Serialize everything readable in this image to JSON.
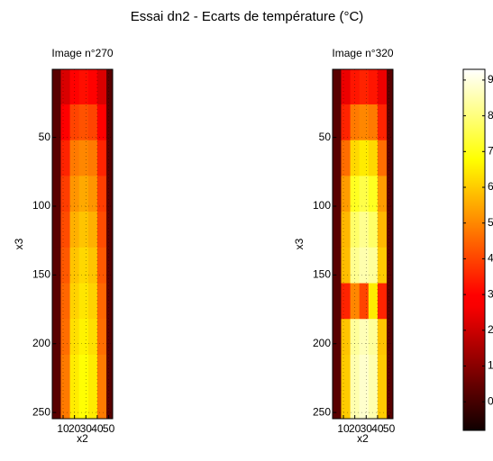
{
  "title": "Essai dn2 - Ecarts de température (°C)",
  "colorbar": {
    "colormap": "hot",
    "clim": [
      -0.8,
      9.3
    ],
    "ticks": [
      0,
      1,
      2,
      3,
      4,
      5,
      6,
      7,
      8,
      9
    ]
  },
  "chart_data": [
    {
      "type": "heatmap",
      "title": "Image n°270",
      "xlabel": "x2",
      "ylabel": "x3",
      "xlim": [
        0.5,
        53.5
      ],
      "ylim": [
        0.5,
        254.5
      ],
      "y_reversed": true,
      "grid": true,
      "xticks": [
        10,
        20,
        30,
        40,
        50
      ],
      "yticks": [
        50,
        100,
        150,
        200,
        250
      ],
      "x": [
        4,
        12,
        20,
        28,
        36,
        44,
        52
      ],
      "y": [
        13,
        39,
        65,
        91,
        117,
        143,
        169,
        195,
        221,
        247
      ],
      "z": [
        [
          0.3,
          2.2,
          3.0,
          3.2,
          3.0,
          2.2,
          0.3
        ],
        [
          0.3,
          2.9,
          4.0,
          4.2,
          4.0,
          2.9,
          0.3
        ],
        [
          0.3,
          3.5,
          4.8,
          5.0,
          4.8,
          3.5,
          0.3
        ],
        [
          0.3,
          3.9,
          5.2,
          5.5,
          5.2,
          3.9,
          0.3
        ],
        [
          0.3,
          4.1,
          5.6,
          5.9,
          5.6,
          4.1,
          0.3
        ],
        [
          0.3,
          4.3,
          5.9,
          6.2,
          5.9,
          4.3,
          0.3
        ],
        [
          0.3,
          4.5,
          6.1,
          6.4,
          6.1,
          4.5,
          0.3
        ],
        [
          0.3,
          4.6,
          6.3,
          6.6,
          6.3,
          4.6,
          0.3
        ],
        [
          0.3,
          4.8,
          6.5,
          6.8,
          6.5,
          4.8,
          0.3
        ],
        [
          0.3,
          4.8,
          6.5,
          6.8,
          6.5,
          4.8,
          0.3
        ]
      ]
    },
    {
      "type": "heatmap",
      "title": "Image n°320",
      "xlabel": "x2",
      "ylabel": "x3",
      "xlim": [
        0.5,
        53.5
      ],
      "ylim": [
        0.5,
        254.5
      ],
      "y_reversed": true,
      "grid": true,
      "xticks": [
        10,
        20,
        30,
        40,
        50
      ],
      "yticks": [
        50,
        100,
        150,
        200,
        250
      ],
      "x": [
        4,
        12,
        20,
        28,
        36,
        44,
        52
      ],
      "y": [
        13,
        39,
        65,
        91,
        117,
        143,
        169,
        195,
        221,
        247
      ],
      "z": [
        [
          0.3,
          2.5,
          3.3,
          3.5,
          3.3,
          2.5,
          0.3
        ],
        [
          0.3,
          3.5,
          4.8,
          5.0,
          4.8,
          3.5,
          0.3
        ],
        [
          0.3,
          4.6,
          6.2,
          6.5,
          6.2,
          4.6,
          0.3
        ],
        [
          0.3,
          5.3,
          7.1,
          7.5,
          7.1,
          5.3,
          0.3
        ],
        [
          0.3,
          5.7,
          7.8,
          8.2,
          7.8,
          5.7,
          0.3
        ],
        [
          0.3,
          5.8,
          8.2,
          8.5,
          8.3,
          6.0,
          0.3
        ],
        [
          0.3,
          3.5,
          5.0,
          4.0,
          6.5,
          3.5,
          0.3
        ],
        [
          0.3,
          5.9,
          8.3,
          8.6,
          8.3,
          5.9,
          0.3
        ],
        [
          0.3,
          6.0,
          8.5,
          8.8,
          8.5,
          6.0,
          0.3
        ],
        [
          0.3,
          6.0,
          8.5,
          8.8,
          8.5,
          6.0,
          0.3
        ]
      ]
    }
  ]
}
